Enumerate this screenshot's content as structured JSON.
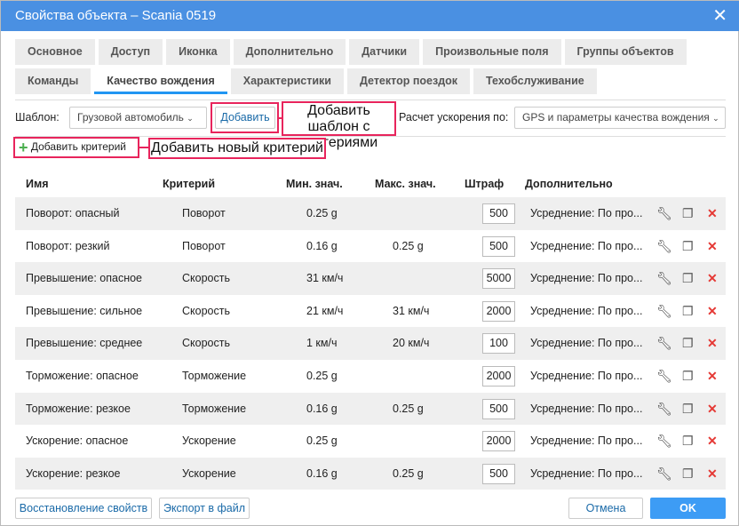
{
  "title": "Свойства объекта – Scania 0519",
  "tabs_row1": [
    "Основное",
    "Доступ",
    "Иконка",
    "Дополнительно",
    "Датчики",
    "Произвольные поля",
    "Группы объектов"
  ],
  "tabs_row2": [
    "Команды",
    "Качество вождения",
    "Характеристики",
    "Детектор поездок",
    "Техобслуживание"
  ],
  "template_label": "Шаблон:",
  "template_value": "Грузовой автомобиль",
  "add_button": "Добавить",
  "accel_label": "Расчет ускорения по:",
  "accel_value": "GPS и параметры качества вождения",
  "add_criterion": "Добавить критерий",
  "callout_template": "Добавить шаблон с критериями",
  "callout_criterion": "Добавить новый критерий",
  "columns": [
    "Имя",
    "Критерий",
    "Мин. знач.",
    "Макс. знач.",
    "Штраф",
    "Дополнительно"
  ],
  "rows": [
    {
      "name": "Поворот: опасный",
      "criterion": "Поворот",
      "min": "0.25 g",
      "max": "",
      "penalty": "500",
      "extra": "Усреднение: По про..."
    },
    {
      "name": "Поворот: резкий",
      "criterion": "Поворот",
      "min": "0.16 g",
      "max": "0.25 g",
      "penalty": "500",
      "extra": "Усреднение: По про..."
    },
    {
      "name": "Превышение: опасное",
      "criterion": "Скорость",
      "min": "31 км/ч",
      "max": "",
      "penalty": "5000",
      "extra": "Усреднение: По про..."
    },
    {
      "name": "Превышение: сильное",
      "criterion": "Скорость",
      "min": "21 км/ч",
      "max": "31 км/ч",
      "penalty": "2000",
      "extra": "Усреднение: По про..."
    },
    {
      "name": "Превышение: среднее",
      "criterion": "Скорость",
      "min": "1 км/ч",
      "max": "20 км/ч",
      "penalty": "100",
      "extra": "Усреднение: По про..."
    },
    {
      "name": "Торможение: опасное",
      "criterion": "Торможение",
      "min": "0.25 g",
      "max": "",
      "penalty": "2000",
      "extra": "Усреднение: По про..."
    },
    {
      "name": "Торможение: резкое",
      "criterion": "Торможение",
      "min": "0.16 g",
      "max": "0.25 g",
      "penalty": "500",
      "extra": "Усреднение: По про..."
    },
    {
      "name": "Ускорение: опасное",
      "criterion": "Ускорение",
      "min": "0.25 g",
      "max": "",
      "penalty": "2000",
      "extra": "Усреднение: По про..."
    },
    {
      "name": "Ускорение: резкое",
      "criterion": "Ускорение",
      "min": "0.16 g",
      "max": "0.25 g",
      "penalty": "500",
      "extra": "Усреднение: По про..."
    }
  ],
  "footer": {
    "restore": "Восстановление свойств",
    "export": "Экспорт в файл",
    "cancel": "Отмена",
    "ok": "OK"
  },
  "colors": {
    "accent": "#4a90e2",
    "ok": "#3d9cf5",
    "callout": "#e8245c",
    "delete": "#e53935",
    "add": "#4caf50"
  }
}
